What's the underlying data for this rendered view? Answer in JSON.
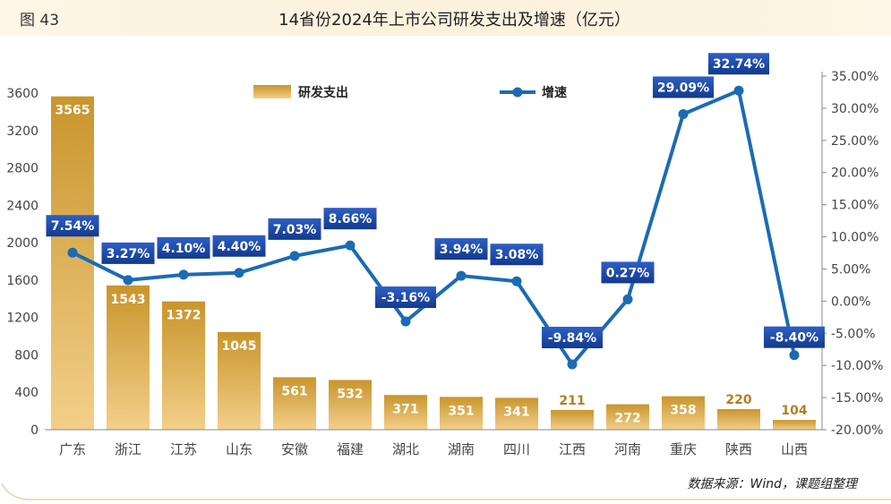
{
  "figure_label": "图 43",
  "title": "14省份2024年上市公司研发支出及增速（亿元）",
  "source": "数据来源：Wind，课题组整理",
  "colors": {
    "bar_top": "#c9952c",
    "bar_bottom": "#f3cf8a",
    "line": "#1b6bb3",
    "label_bg_top": "#2f5fc4",
    "label_bg_bottom": "#123a8e",
    "axis_text": "#444444",
    "header_bg": "#fbf1dc"
  },
  "chart_data": {
    "type": "bar",
    "categories": [
      "广东",
      "浙江",
      "江苏",
      "山东",
      "安徽",
      "福建",
      "湖北",
      "湖南",
      "四川",
      "江西",
      "河南",
      "重庆",
      "陕西",
      "山西"
    ],
    "series": [
      {
        "name": "研发支出",
        "type": "bar",
        "axis": "left",
        "values": [
          3565,
          1543,
          1372,
          1045,
          561,
          532,
          371,
          351,
          341,
          211,
          272,
          358,
          220,
          104
        ],
        "labels": [
          "3565",
          "1543",
          "1372",
          "1045",
          "561",
          "532",
          "371",
          "351",
          "341",
          "211",
          "272",
          "358",
          "220",
          "104"
        ]
      },
      {
        "name": "增速",
        "type": "line",
        "axis": "right",
        "values": [
          7.54,
          3.27,
          4.1,
          4.4,
          7.03,
          8.66,
          -3.16,
          3.94,
          3.08,
          -9.84,
          0.27,
          29.09,
          32.74,
          -8.4
        ],
        "labels": [
          "7.54%",
          "3.27%",
          "4.10%",
          "4.40%",
          "7.03%",
          "8.66%",
          "-3.16%",
          "3.94%",
          "3.08%",
          "-9.84%",
          "0.27%",
          "29.09%",
          "32.74%",
          "-8.40%"
        ]
      }
    ],
    "y_left": {
      "range": [
        0,
        3600
      ],
      "ticks": [
        0,
        400,
        800,
        1200,
        1600,
        2000,
        2400,
        2800,
        3200,
        3600
      ],
      "tick_labels": [
        "0",
        "400",
        "800",
        "1200",
        "1600",
        "2000",
        "2400",
        "2800",
        "3200",
        "3600"
      ]
    },
    "y_right": {
      "range": [
        -20,
        35
      ],
      "ticks": [
        -20,
        -15,
        -10,
        -5,
        0,
        5,
        10,
        15,
        20,
        25,
        30,
        35
      ],
      "tick_labels": [
        "-20.00%",
        "-15.00%",
        "-10.00%",
        "-5.00%",
        "0.00%",
        "5.00%",
        "10.00%",
        "15.00%",
        "20.00%",
        "25.00%",
        "30.00%",
        "35.00%"
      ]
    },
    "legend": {
      "position": "top",
      "items": [
        "研发支出",
        "增速"
      ]
    },
    "grid": false
  }
}
